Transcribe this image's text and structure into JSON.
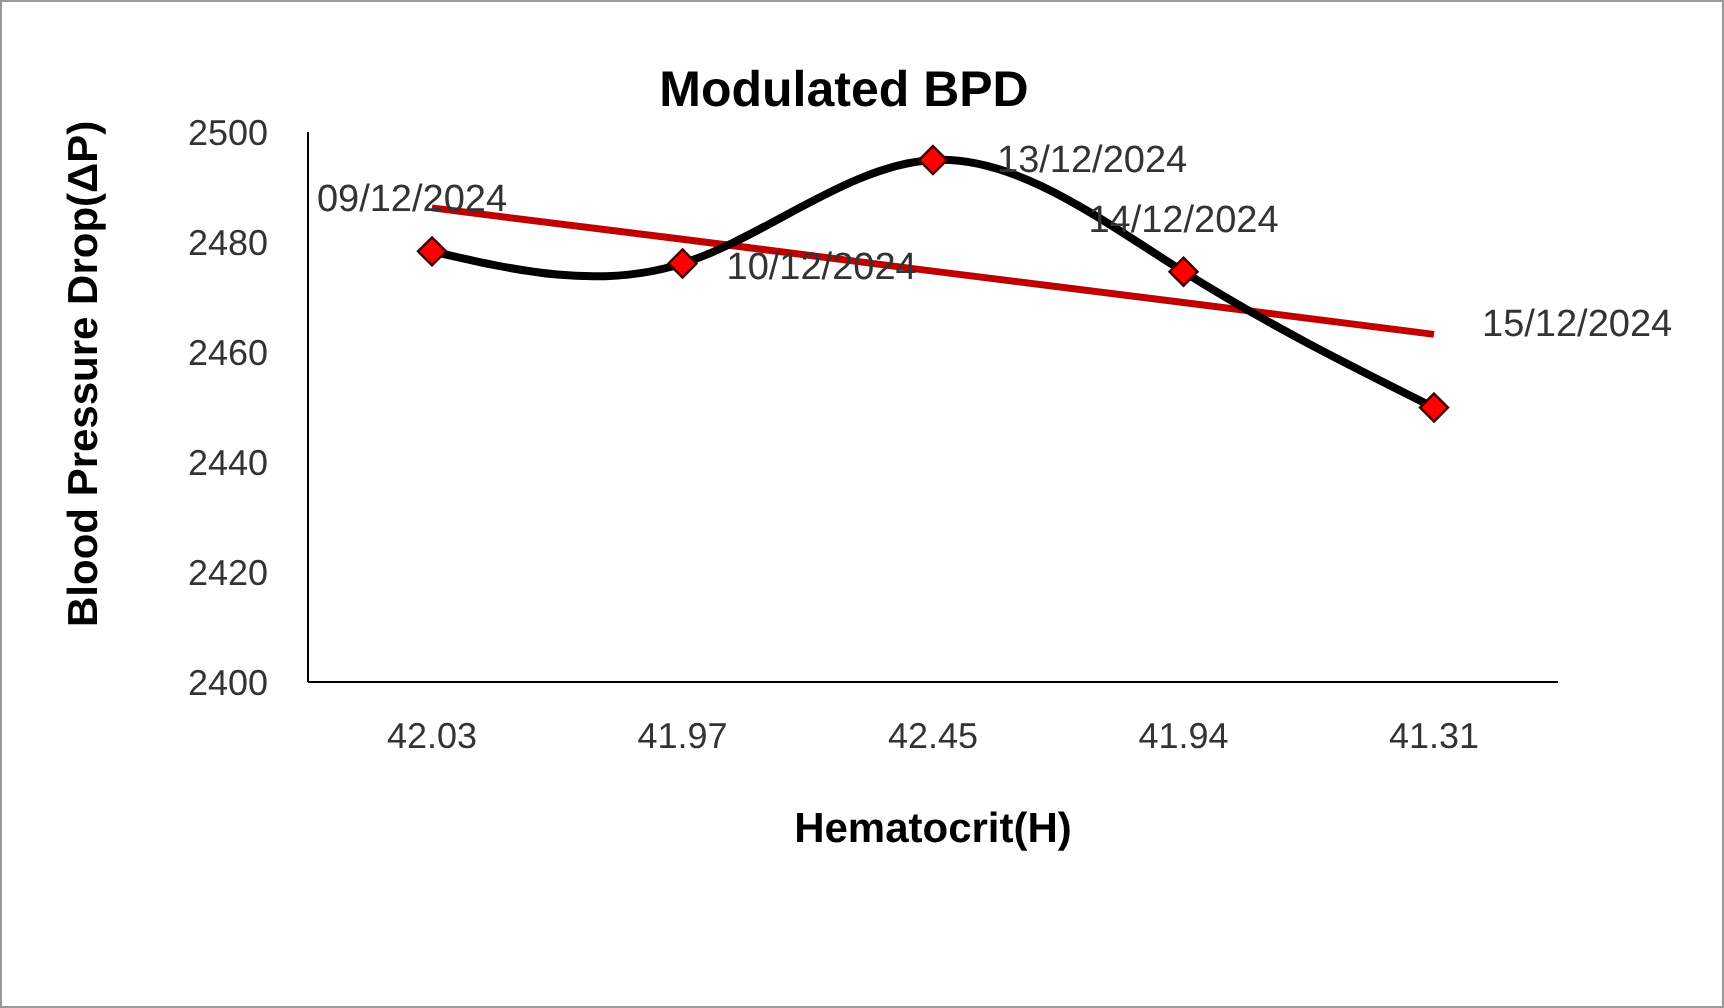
{
  "chart_data": {
    "type": "line",
    "title": "Modulated BPD",
    "xlabel": "Hematocrit(H)",
    "ylabel": "Blood Pressure Drop(ΔP)",
    "categories": [
      "42.03",
      "41.97",
      "42.45",
      "41.94",
      "41.31"
    ],
    "series": [
      {
        "color": "#000000",
        "values": [
          2478.3,
          2476.1,
          2494.9,
          2474.6,
          2449.9
        ],
        "marker": "diamond",
        "colors": [
          "#ff0000",
          "#ff0000",
          "#ff0000",
          "#ff0000",
          "#ff0000"
        ]
      },
      {
        "color": "#c00000",
        "values": [
          2486.2,
          2480.5,
          2474.7,
          2469.0,
          2463.2
        ],
        "marker": "none"
      }
    ],
    "ylim": [
      2400,
      2500
    ],
    "yticks": [
      2400,
      2420,
      2440,
      2460,
      2480,
      2500
    ],
    "grid": false,
    "legend": false,
    "annotations": [
      {
        "text": "09/12/2024",
        "x": "42.03",
        "y": 2478.3
      },
      {
        "text": "10/12/2024",
        "x": "41.97",
        "y": 2476.1
      },
      {
        "text": "13/12/2024",
        "x": "42.45",
        "y": 2494.9
      },
      {
        "text": "14/12/2024",
        "x": "41.94",
        "y": 2474.6
      },
      {
        "text": "15/12/2024",
        "x": "41.31",
        "y": 2449.9
      }
    ]
  }
}
